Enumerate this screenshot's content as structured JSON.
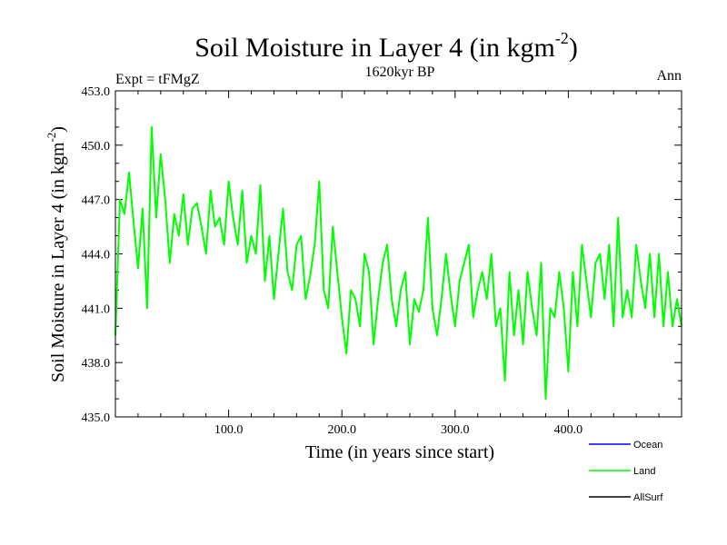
{
  "chart_data": {
    "type": "line",
    "title": "Soil Moisture in Layer 4 (in kgm",
    "title_sup": "-2",
    "title_close": ")",
    "subtitle": "1620kyr BP",
    "left_label": "Expt = tFMgZ",
    "right_label": "Ann",
    "xlabel": "Time (in years since start)",
    "ylabel": "Soil Moisture in Layer 4 (in kgm",
    "ylabel_sup": "-2",
    "ylabel_close": ")",
    "xlim": [
      0,
      500
    ],
    "ylim": [
      435.0,
      453.0
    ],
    "x_ticks": [
      100,
      200,
      300,
      400
    ],
    "x_tick_labels": [
      "100.0",
      "200.0",
      "300.0",
      "400.0"
    ],
    "y_ticks": [
      435,
      438,
      441,
      444,
      447,
      450,
      453
    ],
    "y_tick_labels": [
      "435.0",
      "438.0",
      "441.0",
      "444.0",
      "447.0",
      "450.0",
      "453.0"
    ],
    "legend": [
      {
        "name": "Ocean",
        "color": "#0000ff"
      },
      {
        "name": "Land",
        "color": "#00ff00"
      },
      {
        "name": "AllSurf",
        "color": "#000000"
      }
    ],
    "series": [
      {
        "name": "Land",
        "color": "#00ff00",
        "x": [
          0,
          4,
          8,
          12,
          16,
          20,
          24,
          28,
          32,
          36,
          40,
          44,
          48,
          52,
          56,
          60,
          64,
          68,
          72,
          76,
          80,
          84,
          88,
          92,
          96,
          100,
          104,
          108,
          112,
          116,
          120,
          124,
          128,
          132,
          136,
          140,
          144,
          148,
          152,
          156,
          160,
          164,
          168,
          172,
          176,
          180,
          184,
          188,
          192,
          196,
          200,
          204,
          208,
          212,
          216,
          220,
          224,
          228,
          232,
          236,
          240,
          244,
          248,
          252,
          256,
          260,
          264,
          268,
          272,
          276,
          280,
          284,
          288,
          292,
          296,
          300,
          304,
          308,
          312,
          316,
          320,
          324,
          328,
          332,
          336,
          340,
          344,
          348,
          352,
          356,
          360,
          364,
          368,
          372,
          376,
          380,
          384,
          388,
          392,
          396,
          400,
          404,
          408,
          412,
          416,
          420,
          424,
          428,
          432,
          436,
          440,
          444,
          448,
          452,
          456,
          460,
          464,
          468,
          472,
          476,
          480,
          484,
          488,
          492,
          496,
          500
        ],
        "values": [
          439.5,
          447.0,
          446.2,
          448.5,
          445.8,
          443.2,
          446.5,
          441.0,
          451.0,
          446.0,
          449.5,
          447.0,
          443.5,
          446.2,
          445.0,
          447.3,
          444.5,
          446.5,
          446.8,
          445.5,
          444.0,
          447.5,
          445.5,
          446.0,
          444.5,
          448.0,
          446.0,
          444.5,
          447.5,
          443.5,
          445.0,
          444.0,
          447.8,
          442.5,
          445.0,
          441.5,
          444.0,
          446.5,
          443.0,
          442.0,
          444.5,
          445.0,
          441.5,
          442.8,
          444.5,
          448.0,
          442.0,
          441.0,
          445.5,
          443.0,
          440.5,
          438.5,
          442.0,
          441.5,
          440.0,
          444.0,
          443.0,
          439.0,
          441.5,
          443.5,
          444.5,
          441.5,
          440.0,
          442.0,
          443.0,
          439.0,
          441.5,
          440.8,
          442.0,
          446.0,
          441.0,
          439.5,
          441.5,
          444.0,
          441.8,
          440.0,
          442.5,
          443.5,
          444.5,
          440.5,
          442.0,
          443.0,
          441.5,
          444.0,
          440.0,
          441.0,
          437.0,
          443.0,
          439.5,
          442.0,
          439.0,
          443.0,
          441.0,
          439.5,
          443.5,
          436.0,
          441.0,
          440.5,
          443.0,
          441.0,
          437.5,
          443.0,
          440.0,
          444.5,
          442.5,
          440.5,
          443.5,
          444.0,
          441.5,
          444.5,
          440.0,
          446.0,
          440.5,
          442.0,
          440.5,
          444.5,
          442.5,
          441.0,
          444.0,
          440.5,
          444.0,
          440.0,
          443.0,
          440.0,
          441.5,
          440.0
        ]
      }
    ]
  }
}
